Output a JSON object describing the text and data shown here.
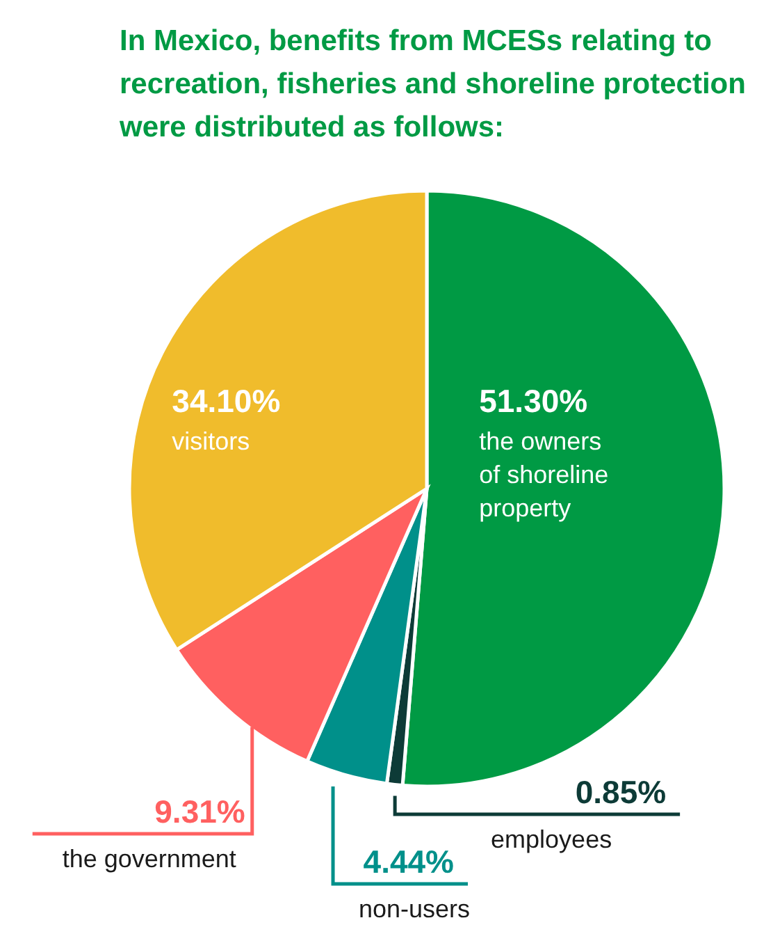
{
  "chart_data": {
    "type": "pie",
    "title": "In Mexico, benefits from MCESs relating to recreation, fisheries and shoreline protection were distributed as follows:",
    "categories": [
      "the owners of shoreline property",
      "employees",
      "non-users",
      "the government",
      "visitors"
    ],
    "values": [
      51.3,
      0.85,
      4.44,
      9.31,
      34.1
    ],
    "value_labels": [
      "51.30%",
      "0.85%",
      "4.44%",
      "9.31%",
      "34.10%"
    ],
    "colors": [
      "#009a44",
      "#0d3b37",
      "#00908a",
      "#ff6060",
      "#f0bc2c"
    ]
  }
}
